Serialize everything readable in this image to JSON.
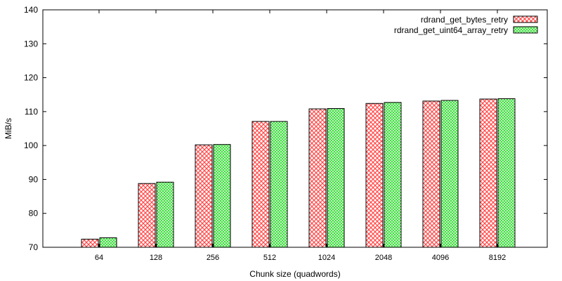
{
  "chart_data": {
    "type": "bar",
    "title": "",
    "xlabel": "Chunk size (quadwords)",
    "ylabel": "MiB/s",
    "ylim": [
      70,
      140
    ],
    "yticks": [
      70,
      80,
      90,
      100,
      110,
      120,
      130,
      140
    ],
    "grid": false,
    "legend_position": "top-right",
    "categories": [
      "64",
      "128",
      "256",
      "512",
      "1024",
      "2048",
      "4096",
      "8192"
    ],
    "series": [
      {
        "name": "rdrand_get_bytes_retry",
        "pattern": "checkered",
        "color": "#ff4d4d",
        "values": [
          72.4,
          88.8,
          100.2,
          107.1,
          110.8,
          112.4,
          113.1,
          113.7
        ]
      },
      {
        "name": "rdrand_get_uint64_array_retry",
        "pattern": "checkered",
        "color": "#33dd33",
        "values": [
          72.8,
          89.2,
          100.3,
          107.1,
          110.9,
          112.7,
          113.3,
          113.8
        ]
      }
    ]
  }
}
